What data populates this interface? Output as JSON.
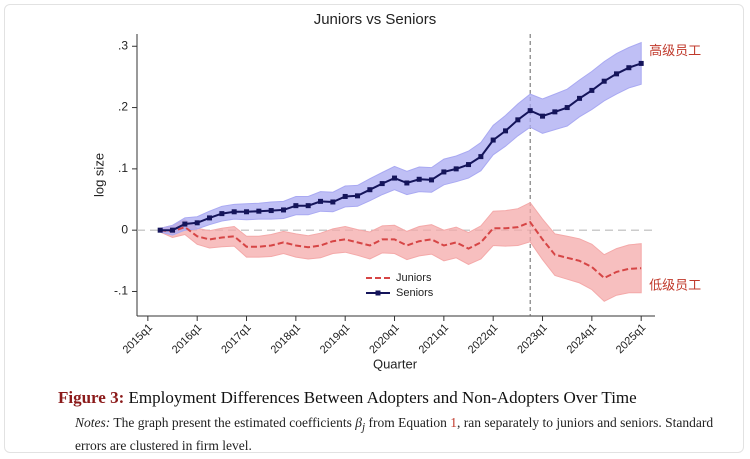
{
  "chart_data": {
    "type": "line",
    "title": "Juniors vs Seniors",
    "x_label": "Quarter",
    "y_label": "log size",
    "x": [
      2015.25,
      2015.5,
      2015.75,
      2016,
      2016.25,
      2016.5,
      2016.75,
      2017,
      2017.25,
      2017.5,
      2017.75,
      2018,
      2018.25,
      2018.5,
      2018.75,
      2019,
      2019.25,
      2019.5,
      2019.75,
      2020,
      2020.25,
      2020.5,
      2020.75,
      2021,
      2021.25,
      2021.5,
      2021.75,
      2022,
      2022.25,
      2022.5,
      2022.75,
      2023,
      2023.25,
      2023.5,
      2023.75,
      2024,
      2024.25,
      2024.5,
      2024.75,
      2025
    ],
    "xlim": [
      2014.78,
      2025.28
    ],
    "xticks": [
      {
        "value": 2015,
        "label": "2015q1"
      },
      {
        "value": 2016,
        "label": "2016q1"
      },
      {
        "value": 2017,
        "label": "2017q1"
      },
      {
        "value": 2018,
        "label": "2018q1"
      },
      {
        "value": 2019,
        "label": "2019q1"
      },
      {
        "value": 2020,
        "label": "2020q1"
      },
      {
        "value": 2021,
        "label": "2021q1"
      },
      {
        "value": 2022,
        "label": "2022q1"
      },
      {
        "value": 2023,
        "label": "2023q1"
      },
      {
        "value": 2024,
        "label": "2024q1"
      },
      {
        "value": 2025,
        "label": "2025q1"
      }
    ],
    "ylim": [
      -0.14,
      0.32
    ],
    "yticks": [
      {
        "value": -0.1,
        "label": "-.1"
      },
      0,
      {
        "value": 0.1,
        "label": ".1"
      },
      {
        "value": 0.2,
        "label": ".2"
      },
      {
        "value": 0.3,
        "label": ".3"
      }
    ],
    "grid": false,
    "hline": 0,
    "vline": 2022.75,
    "legend": "lower center",
    "series": [
      {
        "name": "Juniors",
        "color": "#d64545",
        "band_color": "#f4a9a9",
        "dashed": true,
        "marker": "none",
        "values": [
          0,
          -0.002,
          0.005,
          -0.01,
          -0.015,
          -0.012,
          -0.01,
          -0.027,
          -0.027,
          -0.025,
          -0.02,
          -0.025,
          -0.028,
          -0.025,
          -0.018,
          -0.015,
          -0.02,
          -0.025,
          -0.015,
          -0.015,
          -0.025,
          -0.018,
          -0.015,
          -0.025,
          -0.02,
          -0.03,
          -0.02,
          0.003,
          0.003,
          0.005,
          0.013,
          -0.015,
          -0.04,
          -0.045,
          -0.05,
          -0.06,
          -0.078,
          -0.068,
          -0.063,
          -0.062
        ],
        "ci_low": [
          -0.003,
          -0.012,
          -0.007,
          -0.023,
          -0.029,
          -0.027,
          -0.026,
          -0.044,
          -0.044,
          -0.043,
          -0.038,
          -0.044,
          -0.047,
          -0.045,
          -0.038,
          -0.036,
          -0.041,
          -0.047,
          -0.037,
          -0.038,
          -0.048,
          -0.042,
          -0.039,
          -0.05,
          -0.045,
          -0.056,
          -0.047,
          -0.025,
          -0.026,
          -0.025,
          -0.019,
          -0.048,
          -0.074,
          -0.08,
          -0.086,
          -0.097,
          -0.116,
          -0.106,
          -0.102,
          -0.102
        ],
        "ci_high": [
          0.003,
          0.008,
          0.017,
          0.003,
          -0.001,
          0.003,
          0.006,
          -0.01,
          -0.01,
          -0.007,
          -0.002,
          -0.006,
          -0.009,
          -0.005,
          0.002,
          0.006,
          0.001,
          -0.003,
          0.007,
          0.008,
          -0.002,
          0.006,
          0.009,
          0,
          0.005,
          -0.004,
          0.007,
          0.031,
          0.032,
          0.035,
          0.045,
          0.018,
          -0.006,
          -0.01,
          -0.014,
          -0.023,
          -0.04,
          -0.03,
          -0.024,
          -0.022
        ]
      },
      {
        "name": "Seniors",
        "color": "#14145a",
        "band_color": "#a9a9f2",
        "dashed": false,
        "marker": "square",
        "values": [
          0,
          0,
          0.01,
          0.012,
          0.02,
          0.027,
          0.03,
          0.03,
          0.031,
          0.032,
          0.033,
          0.04,
          0.04,
          0.047,
          0.046,
          0.055,
          0.056,
          0.066,
          0.076,
          0.085,
          0.077,
          0.083,
          0.082,
          0.095,
          0.1,
          0.107,
          0.12,
          0.147,
          0.162,
          0.18,
          0.195,
          0.186,
          0.193,
          0.2,
          0.215,
          0.228,
          0.243,
          0.255,
          0.265,
          0.272
        ],
        "ci_low": [
          -0.003,
          -0.008,
          0,
          0.002,
          0.009,
          0.015,
          0.018,
          0.017,
          0.018,
          0.018,
          0.019,
          0.025,
          0.025,
          0.031,
          0.03,
          0.038,
          0.039,
          0.048,
          0.058,
          0.066,
          0.058,
          0.063,
          0.062,
          0.074,
          0.079,
          0.085,
          0.097,
          0.123,
          0.137,
          0.154,
          0.168,
          0.158,
          0.164,
          0.17,
          0.185,
          0.197,
          0.211,
          0.222,
          0.232,
          0.238
        ],
        "ci_high": [
          0.003,
          0.008,
          0.02,
          0.022,
          0.031,
          0.039,
          0.042,
          0.043,
          0.044,
          0.046,
          0.047,
          0.055,
          0.055,
          0.063,
          0.062,
          0.072,
          0.073,
          0.084,
          0.094,
          0.104,
          0.096,
          0.103,
          0.102,
          0.116,
          0.121,
          0.129,
          0.143,
          0.171,
          0.187,
          0.206,
          0.222,
          0.214,
          0.222,
          0.23,
          0.245,
          0.259,
          0.275,
          0.288,
          0.298,
          0.306
        ]
      }
    ],
    "annotations": [
      "低级员工",
      "高级员工"
    ]
  },
  "caption": {
    "label": "Figure 3:",
    "title": "Employment Differences Between Adopters and Non-Adopters Over Time"
  },
  "notes": {
    "label": "Notes:",
    "before": "The graph present the estimated coefficients",
    "symbol": "β",
    "subscript": "j",
    "middle": "from Equation",
    "ref": "1",
    "after": ", ran separately to juniors and seniors. Standard errors are clustered in firm level."
  }
}
